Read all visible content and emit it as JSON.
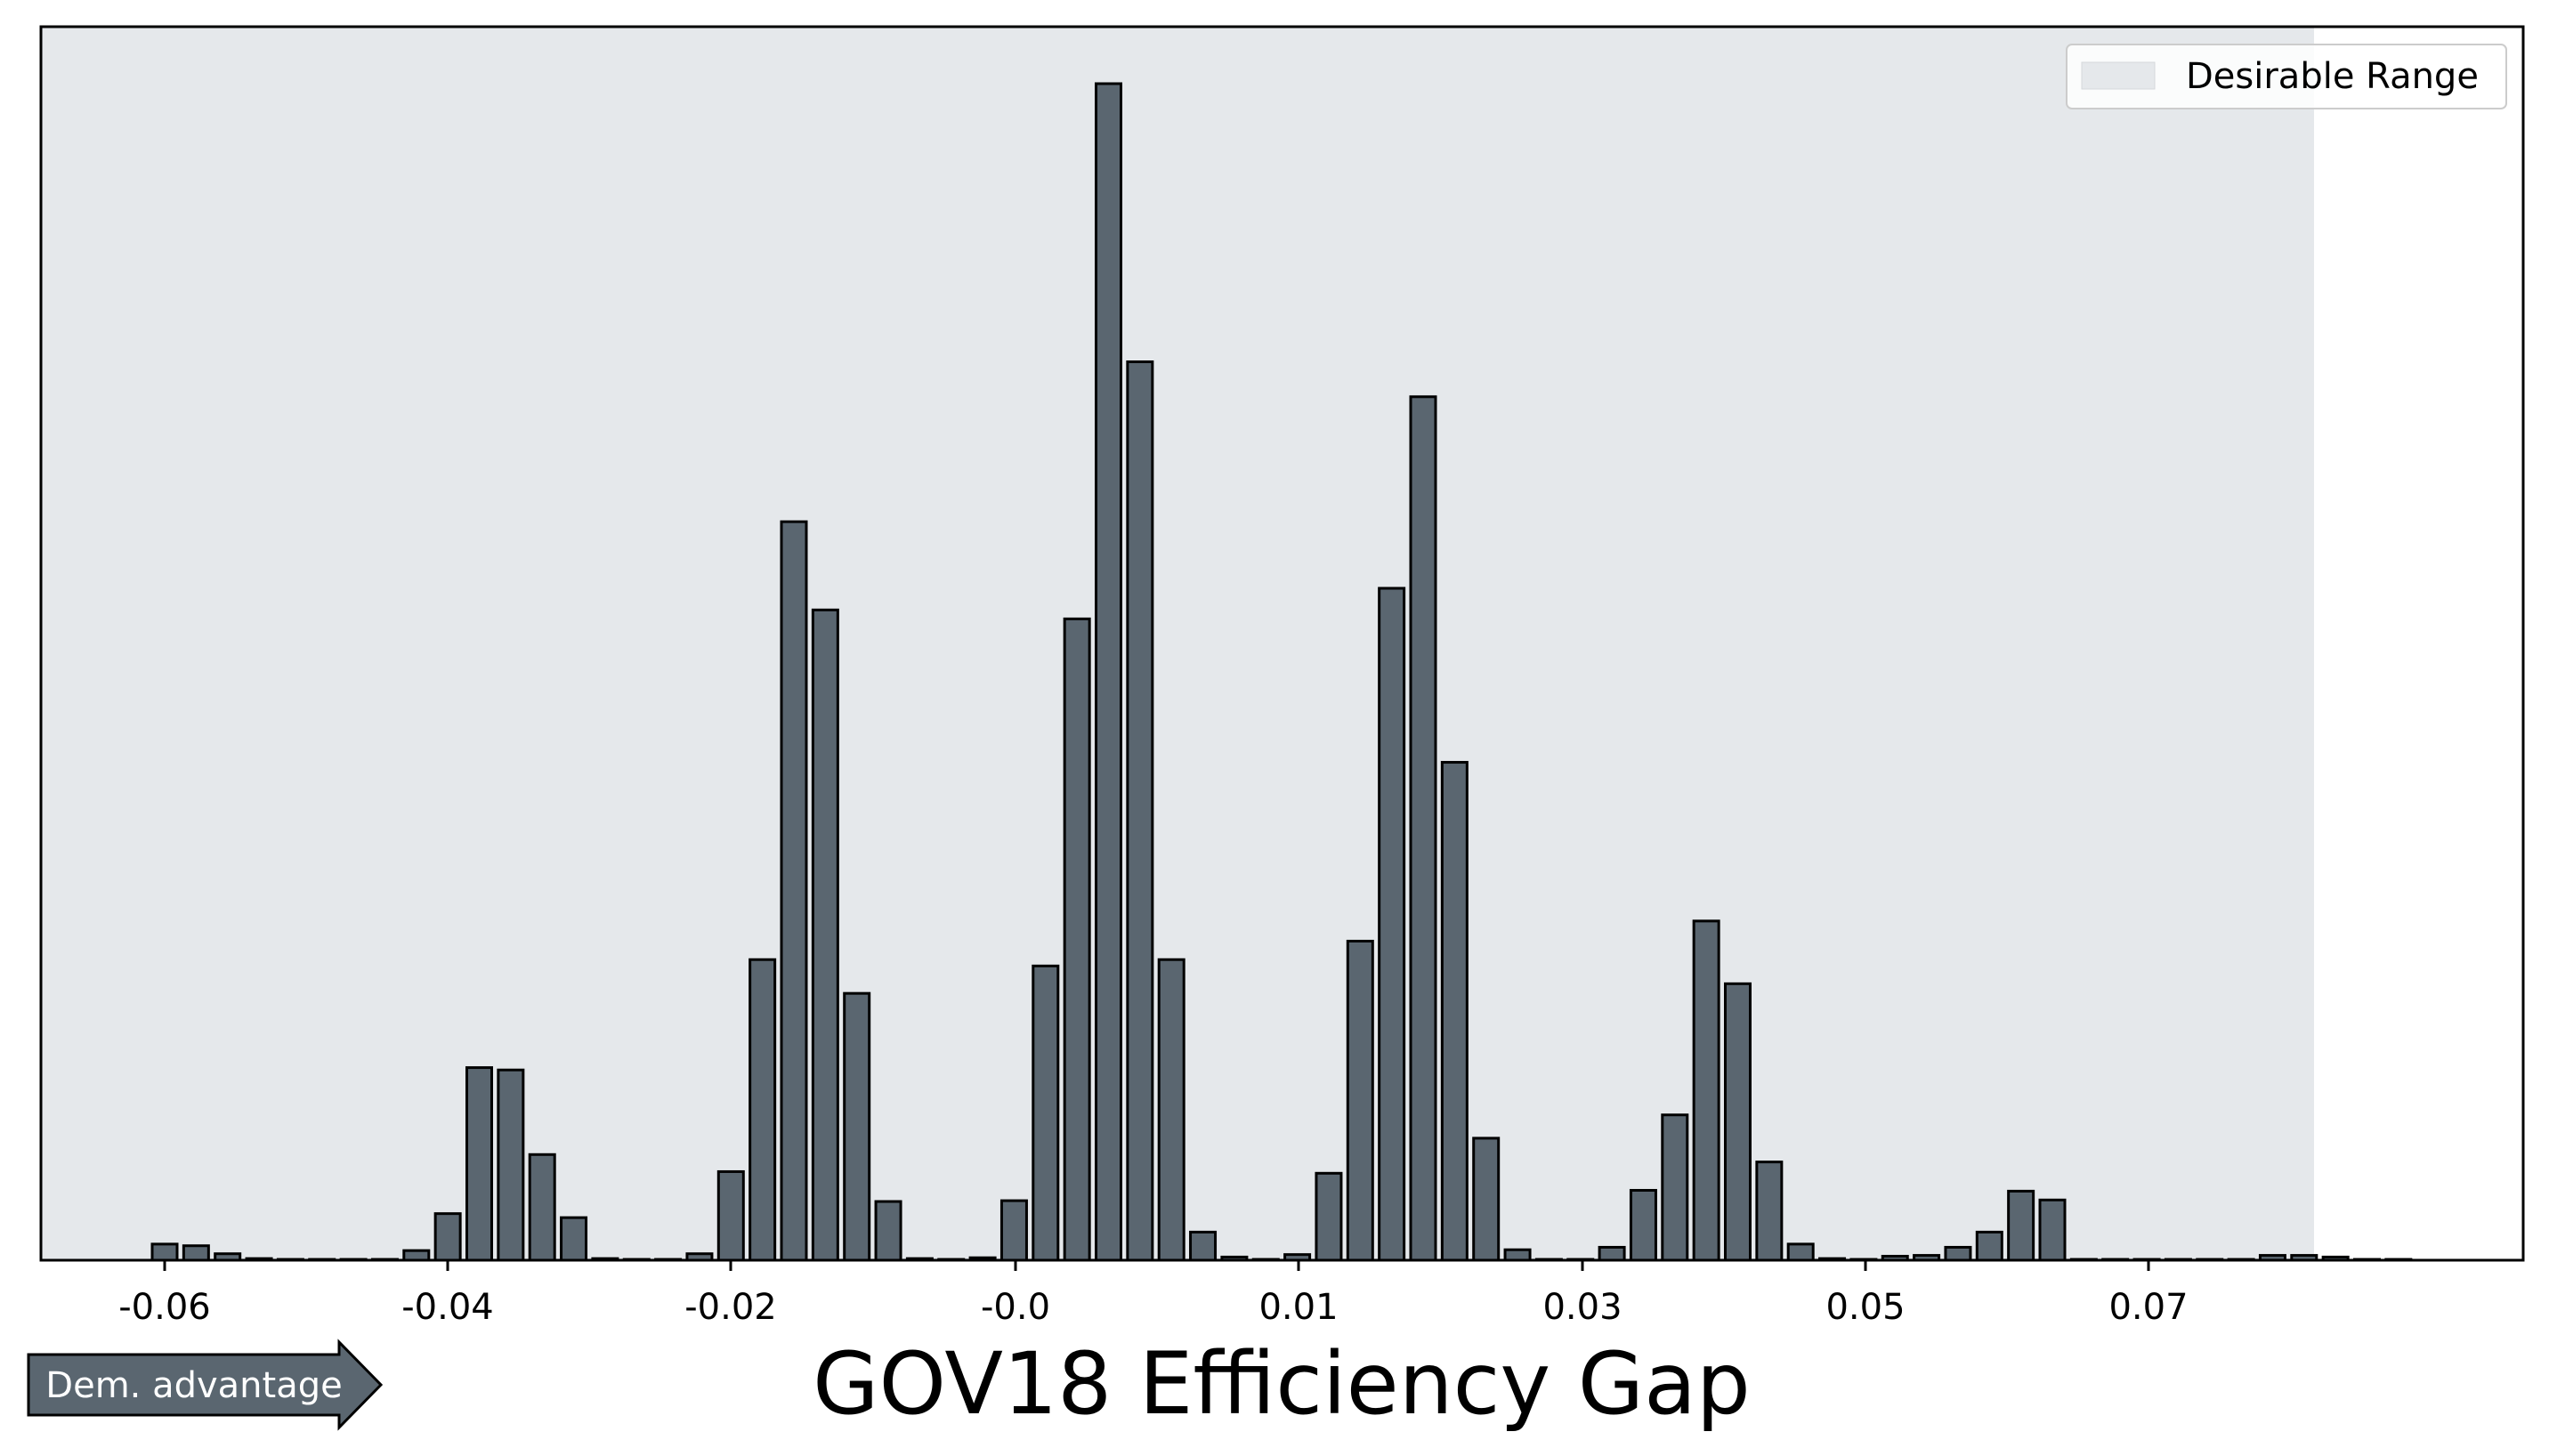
{
  "chart_data": {
    "type": "bar",
    "title": "",
    "xlabel": "GOV18 Efficiency Gap",
    "ylabel": "",
    "x_tick_labels": [
      "-0.06",
      "-0.04",
      "-0.02",
      "-0.0",
      "0.01",
      "0.03",
      "0.05",
      "0.07"
    ],
    "y_ticks_shown": false,
    "grid": false,
    "legend": {
      "placement": "top-right",
      "entries": [
        "Desirable Range"
      ]
    },
    "shaded_range": {
      "label": "Desirable Range",
      "color": "#e5e8eb"
    },
    "annotation": {
      "text": "Dem. advantage",
      "shape": "right-arrow",
      "color": "#5a6670"
    },
    "bar_color": "#5a6670",
    "series": [
      {
        "values": [
          0.0137,
          0.0123,
          0.0055,
          0.0014,
          0.0007,
          0.0007,
          0.0007,
          0.0007,
          0.0082,
          0.0396,
          0.1637,
          0.1617,
          0.0898,
          0.0362,
          0.0014,
          0.0007,
          0.0007,
          0.0055,
          0.0753,
          0.2555,
          0.6277,
          0.5527,
          0.2268,
          0.0499,
          0.0014,
          0.0007,
          0.0021,
          0.0506,
          0.2501,
          0.5451,
          1.0,
          0.7636,
          0.2555,
          0.0239,
          0.0027,
          0.0007,
          0.0048,
          0.0739,
          0.2712,
          0.5711,
          0.7339,
          0.4232,
          0.1037,
          0.0089,
          0.0007,
          0.0007,
          0.011,
          0.0594,
          0.1235,
          0.2883,
          0.235,
          0.0835,
          0.0137,
          0.0014,
          0.0007,
          0.0034,
          0.0041,
          0.011,
          0.0239,
          0.0587,
          0.0512,
          0.0007,
          0.0007,
          0.0007,
          0.0007,
          0.0007,
          0.0007,
          0.0041,
          0.0041,
          0.0027,
          0.0007,
          0.0007
        ]
      }
    ]
  }
}
